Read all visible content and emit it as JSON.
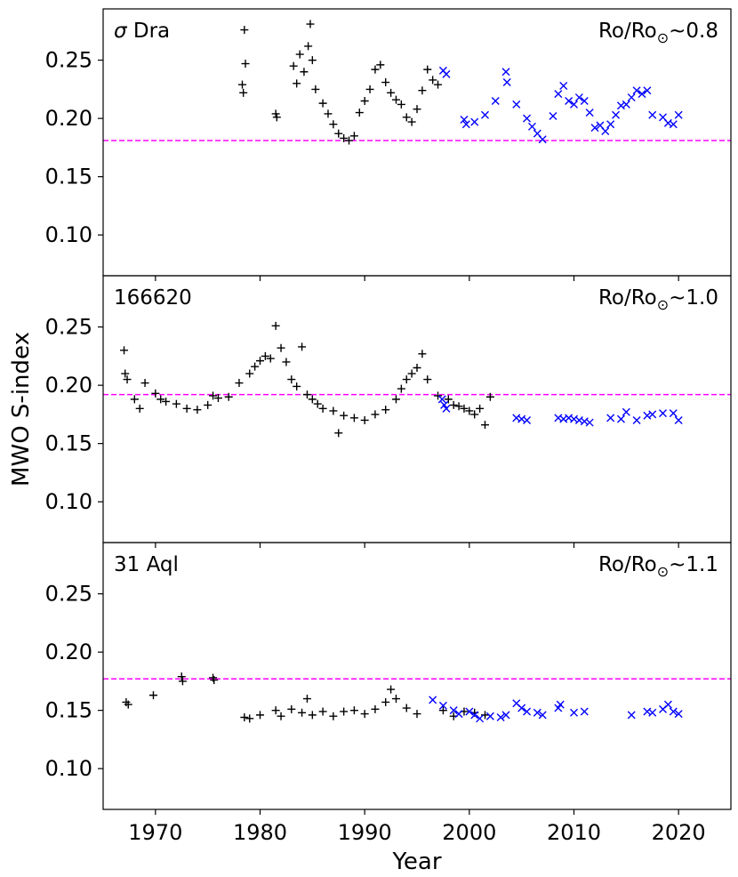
{
  "chart_data": {
    "type": "scatter",
    "shared_xlabel": "Year",
    "shared_ylabel": "MWO S-index",
    "xlim": [
      1965,
      2025
    ],
    "ylim": [
      0.065,
      0.294
    ],
    "xticks": [
      1970,
      1980,
      1990,
      2000,
      2010,
      2020
    ],
    "yticks": [
      0.1,
      0.15,
      0.2,
      0.25
    ],
    "ytick_labels": [
      "0.10",
      "0.15",
      "0.20",
      "0.25"
    ],
    "colors": {
      "historic": "#000000",
      "modern": "#0000ff",
      "reference": "#ff00ff"
    },
    "marker_symbols": {
      "historic": "+",
      "modern": "x"
    },
    "panels": [
      {
        "star_prefix": "σ",
        "star_name": " Dra",
        "ro_text": "Ro/Ro",
        "ro_value": "~0.8",
        "reference_line": 0.181,
        "series": [
          {
            "marker": "+",
            "color": "#000000",
            "points": [
              [
                1978.5,
                0.276
              ],
              [
                1978.6,
                0.247
              ],
              [
                1978.3,
                0.229
              ],
              [
                1978.4,
                0.222
              ],
              [
                1981.5,
                0.204
              ],
              [
                1981.6,
                0.201
              ],
              [
                1983.2,
                0.245
              ],
              [
                1983.5,
                0.23
              ],
              [
                1983.8,
                0.255
              ],
              [
                1984.2,
                0.24
              ],
              [
                1984.6,
                0.262
              ],
              [
                1984.8,
                0.281
              ],
              [
                1985.0,
                0.25
              ],
              [
                1985.3,
                0.225
              ],
              [
                1986.0,
                0.213
              ],
              [
                1986.5,
                0.204
              ],
              [
                1987.0,
                0.195
              ],
              [
                1987.5,
                0.187
              ],
              [
                1988.0,
                0.183
              ],
              [
                1988.5,
                0.181
              ],
              [
                1989.0,
                0.185
              ],
              [
                1989.5,
                0.205
              ],
              [
                1990.0,
                0.215
              ],
              [
                1990.5,
                0.225
              ],
              [
                1991.0,
                0.242
              ],
              [
                1991.5,
                0.246
              ],
              [
                1992.0,
                0.231
              ],
              [
                1992.5,
                0.222
              ],
              [
                1993.0,
                0.216
              ],
              [
                1993.5,
                0.212
              ],
              [
                1994.0,
                0.201
              ],
              [
                1994.5,
                0.197
              ],
              [
                1995.0,
                0.208
              ],
              [
                1995.5,
                0.224
              ],
              [
                1996.0,
                0.242
              ],
              [
                1996.5,
                0.233
              ],
              [
                1997.0,
                0.229
              ]
            ]
          },
          {
            "marker": "x",
            "color": "#0000ff",
            "points": [
              [
                1997.5,
                0.241
              ],
              [
                1997.8,
                0.238
              ],
              [
                1999.5,
                0.199
              ],
              [
                1999.7,
                0.195
              ],
              [
                2000.5,
                0.197
              ],
              [
                2001.5,
                0.203
              ],
              [
                2002.5,
                0.215
              ],
              [
                2003.5,
                0.24
              ],
              [
                2003.6,
                0.231
              ],
              [
                2004.5,
                0.212
              ],
              [
                2005.5,
                0.2
              ],
              [
                2006.0,
                0.193
              ],
              [
                2006.5,
                0.187
              ],
              [
                2007.0,
                0.182
              ],
              [
                2008.0,
                0.202
              ],
              [
                2008.5,
                0.221
              ],
              [
                2009.0,
                0.228
              ],
              [
                2009.5,
                0.215
              ],
              [
                2010.0,
                0.212
              ],
              [
                2010.5,
                0.218
              ],
              [
                2011.0,
                0.215
              ],
              [
                2011.5,
                0.205
              ],
              [
                2012.0,
                0.192
              ],
              [
                2012.5,
                0.194
              ],
              [
                2013.0,
                0.189
              ],
              [
                2013.5,
                0.195
              ],
              [
                2014.0,
                0.203
              ],
              [
                2014.5,
                0.211
              ],
              [
                2015.0,
                0.212
              ],
              [
                2015.5,
                0.218
              ],
              [
                2016.0,
                0.224
              ],
              [
                2016.5,
                0.221
              ],
              [
                2017.0,
                0.224
              ],
              [
                2017.5,
                0.203
              ],
              [
                2018.5,
                0.201
              ],
              [
                2019.0,
                0.196
              ],
              [
                2019.5,
                0.195
              ],
              [
                2020.0,
                0.203
              ]
            ]
          }
        ]
      },
      {
        "star_prefix": "",
        "star_name": "166620",
        "ro_text": "Ro/Ro",
        "ro_value": "~1.0",
        "reference_line": 0.192,
        "series": [
          {
            "marker": "+",
            "color": "#000000",
            "points": [
              [
                1967.0,
                0.23
              ],
              [
                1967.1,
                0.21
              ],
              [
                1967.3,
                0.205
              ],
              [
                1968.0,
                0.188
              ],
              [
                1968.5,
                0.18
              ],
              [
                1969.0,
                0.202
              ],
              [
                1970.0,
                0.193
              ],
              [
                1970.5,
                0.188
              ],
              [
                1971.0,
                0.186
              ],
              [
                1972.0,
                0.184
              ],
              [
                1973.0,
                0.18
              ],
              [
                1974.0,
                0.179
              ],
              [
                1975.0,
                0.183
              ],
              [
                1975.5,
                0.191
              ],
              [
                1976.0,
                0.189
              ],
              [
                1977.0,
                0.19
              ],
              [
                1978.0,
                0.202
              ],
              [
                1979.0,
                0.21
              ],
              [
                1979.5,
                0.216
              ],
              [
                1980.0,
                0.221
              ],
              [
                1980.5,
                0.225
              ],
              [
                1981.0,
                0.223
              ],
              [
                1981.5,
                0.251
              ],
              [
                1982.0,
                0.232
              ],
              [
                1982.5,
                0.22
              ],
              [
                1983.0,
                0.205
              ],
              [
                1983.5,
                0.199
              ],
              [
                1984.0,
                0.233
              ],
              [
                1984.5,
                0.192
              ],
              [
                1985.0,
                0.188
              ],
              [
                1985.5,
                0.184
              ],
              [
                1986.0,
                0.18
              ],
              [
                1987.0,
                0.178
              ],
              [
                1987.5,
                0.159
              ],
              [
                1988.0,
                0.174
              ],
              [
                1989.0,
                0.172
              ],
              [
                1990.0,
                0.17
              ],
              [
                1991.0,
                0.175
              ],
              [
                1992.0,
                0.179
              ],
              [
                1993.0,
                0.188
              ],
              [
                1993.5,
                0.197
              ],
              [
                1994.0,
                0.205
              ],
              [
                1994.5,
                0.21
              ],
              [
                1995.0,
                0.215
              ],
              [
                1995.5,
                0.227
              ],
              [
                1996.0,
                0.205
              ],
              [
                1997.0,
                0.191
              ],
              [
                1998.0,
                0.188
              ],
              [
                1998.5,
                0.183
              ],
              [
                1999.0,
                0.182
              ],
              [
                1999.5,
                0.18
              ],
              [
                2000.0,
                0.178
              ],
              [
                2000.5,
                0.175
              ],
              [
                2001.0,
                0.18
              ],
              [
                2001.5,
                0.166
              ],
              [
                2002.0,
                0.19
              ]
            ]
          },
          {
            "marker": "x",
            "color": "#0000ff",
            "points": [
              [
                1997.4,
                0.188
              ],
              [
                1997.6,
                0.183
              ],
              [
                1997.8,
                0.18
              ],
              [
                2004.5,
                0.172
              ],
              [
                2005.0,
                0.171
              ],
              [
                2005.5,
                0.17
              ],
              [
                2008.5,
                0.172
              ],
              [
                2009.0,
                0.171
              ],
              [
                2009.5,
                0.172
              ],
              [
                2010.0,
                0.171
              ],
              [
                2010.5,
                0.17
              ],
              [
                2011.0,
                0.169
              ],
              [
                2011.5,
                0.168
              ],
              [
                2013.5,
                0.172
              ],
              [
                2014.5,
                0.171
              ],
              [
                2015.0,
                0.177
              ],
              [
                2016.0,
                0.17
              ],
              [
                2017.0,
                0.174
              ],
              [
                2017.5,
                0.175
              ],
              [
                2018.5,
                0.176
              ],
              [
                2019.5,
                0.176
              ],
              [
                2020.0,
                0.17
              ]
            ]
          }
        ]
      },
      {
        "star_prefix": "",
        "star_name": "31 Aql",
        "ro_text": "Ro/Ro",
        "ro_value": "~1.1",
        "reference_line": 0.177,
        "series": [
          {
            "marker": "+",
            "color": "#000000",
            "points": [
              [
                1967.2,
                0.157
              ],
              [
                1967.4,
                0.155
              ],
              [
                1969.8,
                0.163
              ],
              [
                1972.5,
                0.179
              ],
              [
                1972.6,
                0.175
              ],
              [
                1975.5,
                0.178
              ],
              [
                1975.6,
                0.176
              ],
              [
                1978.5,
                0.144
              ],
              [
                1979.0,
                0.143
              ],
              [
                1980.0,
                0.146
              ],
              [
                1981.5,
                0.15
              ],
              [
                1982.0,
                0.145
              ],
              [
                1983.0,
                0.151
              ],
              [
                1984.0,
                0.148
              ],
              [
                1984.5,
                0.16
              ],
              [
                1985.0,
                0.146
              ],
              [
                1986.0,
                0.149
              ],
              [
                1987.0,
                0.145
              ],
              [
                1988.0,
                0.149
              ],
              [
                1989.0,
                0.15
              ],
              [
                1990.0,
                0.147
              ],
              [
                1991.0,
                0.151
              ],
              [
                1992.0,
                0.157
              ],
              [
                1992.5,
                0.168
              ],
              [
                1993.0,
                0.16
              ],
              [
                1994.0,
                0.152
              ],
              [
                1995.0,
                0.147
              ],
              [
                1997.5,
                0.15
              ],
              [
                1998.5,
                0.145
              ],
              [
                1999.5,
                0.149
              ],
              [
                2000.5,
                0.148
              ],
              [
                2001.5,
                0.146
              ]
            ]
          },
          {
            "marker": "x",
            "color": "#0000ff",
            "points": [
              [
                1996.5,
                0.159
              ],
              [
                1997.5,
                0.154
              ],
              [
                1998.5,
                0.15
              ],
              [
                1999.0,
                0.147
              ],
              [
                2000.0,
                0.149
              ],
              [
                2000.5,
                0.146
              ],
              [
                2001.0,
                0.143
              ],
              [
                2002.0,
                0.145
              ],
              [
                2003.0,
                0.144
              ],
              [
                2003.5,
                0.146
              ],
              [
                2004.5,
                0.156
              ],
              [
                2005.0,
                0.152
              ],
              [
                2005.5,
                0.149
              ],
              [
                2006.5,
                0.148
              ],
              [
                2007.0,
                0.146
              ],
              [
                2008.5,
                0.152
              ],
              [
                2008.7,
                0.155
              ],
              [
                2010.0,
                0.148
              ],
              [
                2011.0,
                0.149
              ],
              [
                2015.5,
                0.146
              ],
              [
                2017.0,
                0.149
              ],
              [
                2017.5,
                0.148
              ],
              [
                2018.5,
                0.151
              ],
              [
                2019.0,
                0.155
              ],
              [
                2019.5,
                0.149
              ],
              [
                2020.0,
                0.147
              ]
            ]
          }
        ]
      }
    ]
  }
}
